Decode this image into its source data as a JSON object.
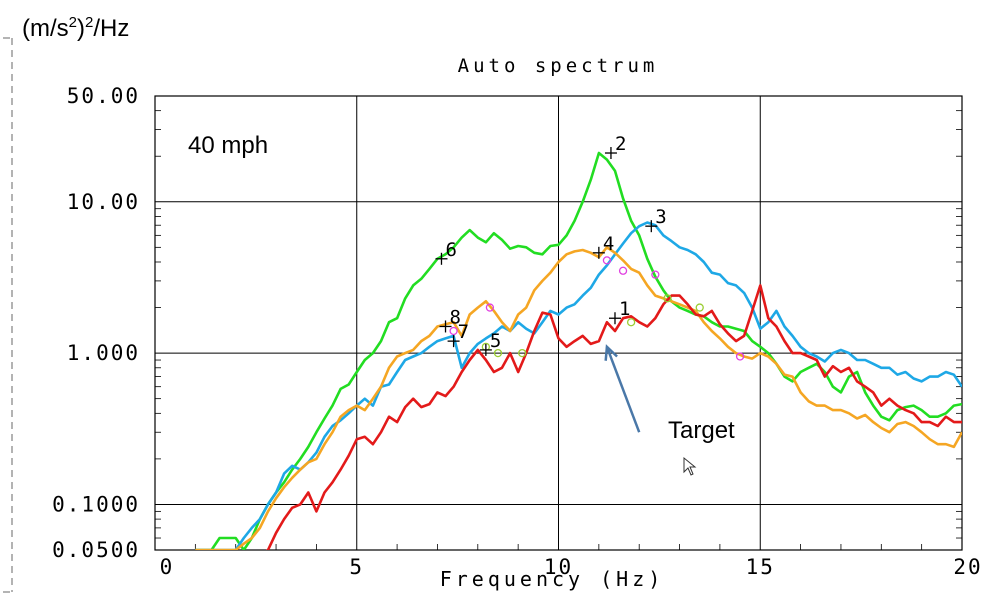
{
  "chart_data": {
    "type": "line",
    "title": "Auto spectrum",
    "xlabel": "Frequency (Hz)",
    "ylabel": "(m/s²)²/Hz",
    "ylabel_parts": [
      "(m/s",
      "2",
      ")",
      "2",
      "/Hz"
    ],
    "condition_label": "40 mph",
    "xlim": [
      0,
      20
    ],
    "ylim": [
      0.05,
      50
    ],
    "y_scale": "log",
    "x_ticks": [
      0,
      5,
      10,
      15,
      20
    ],
    "x_tick_labels": [
      "0",
      "5",
      "10",
      "15",
      "20"
    ],
    "y_ticks": [
      0.05,
      0.1,
      1,
      10,
      50
    ],
    "y_tick_labels": [
      "0.0500",
      "0.1000",
      "1.000",
      "10.00",
      "50.00"
    ],
    "grid": true,
    "series": [
      {
        "color": "#22dd22",
        "x": [
          1.0,
          1.2,
          1.4,
          1.6,
          1.8,
          2.0,
          2.2,
          2.4,
          2.6,
          2.8,
          3.0,
          3.2,
          3.4,
          3.6,
          3.8,
          4.0,
          4.2,
          4.4,
          4.6,
          4.8,
          5.0,
          5.2,
          5.4,
          5.6,
          5.8,
          6.0,
          6.2,
          6.4,
          6.6,
          6.8,
          7.0,
          7.2,
          7.4,
          7.6,
          7.8,
          8.0,
          8.2,
          8.4,
          8.6,
          8.8,
          9.0,
          9.2,
          9.4,
          9.6,
          9.8,
          10.0,
          10.2,
          10.4,
          10.6,
          10.8,
          11.0,
          11.2,
          11.4,
          11.6,
          11.8,
          12.0,
          12.2,
          12.4,
          12.6,
          12.8,
          13.0,
          13.2,
          13.4,
          13.6,
          13.8,
          14.0,
          14.2,
          14.4,
          14.6,
          14.8,
          15.0,
          15.2,
          15.4,
          15.6,
          15.8,
          16.0,
          16.2,
          16.4,
          16.6,
          16.8,
          17.0,
          17.2,
          17.4,
          17.6,
          17.8,
          18.0,
          18.2,
          18.4,
          18.6,
          18.8,
          19.0,
          19.2,
          19.4,
          19.6,
          19.8,
          20.0
        ],
        "y": [
          0.05,
          0.05,
          0.05,
          0.06,
          0.06,
          0.06,
          0.05,
          0.06,
          0.08,
          0.1,
          0.12,
          0.14,
          0.17,
          0.2,
          0.24,
          0.3,
          0.37,
          0.45,
          0.58,
          0.62,
          0.75,
          0.9,
          1.0,
          1.2,
          1.6,
          1.7,
          2.3,
          2.8,
          3.1,
          3.6,
          4.2,
          4.5,
          5.0,
          5.8,
          6.5,
          5.8,
          5.4,
          6.2,
          5.6,
          4.9,
          5.1,
          5.0,
          4.6,
          4.5,
          5.1,
          5.2,
          6.0,
          7.5,
          10.0,
          14.0,
          21.0,
          19.0,
          16.0,
          10.5,
          7.5,
          6.0,
          4.2,
          3.2,
          2.6,
          2.2,
          2.0,
          1.9,
          1.8,
          1.75,
          1.6,
          1.5,
          1.5,
          1.45,
          1.4,
          1.2,
          1.1,
          1.0,
          0.85,
          0.7,
          0.65,
          0.75,
          0.8,
          0.85,
          0.75,
          0.6,
          0.55,
          0.7,
          0.75,
          0.55,
          0.45,
          0.38,
          0.36,
          0.42,
          0.44,
          0.45,
          0.42,
          0.38,
          0.38,
          0.4,
          0.45,
          0.46
        ]
      },
      {
        "color": "#1ea8e6",
        "x": [
          1.0,
          1.2,
          1.4,
          1.6,
          1.8,
          2.0,
          2.2,
          2.4,
          2.6,
          2.8,
          3.0,
          3.2,
          3.4,
          3.6,
          3.8,
          4.0,
          4.2,
          4.4,
          4.6,
          4.8,
          5.0,
          5.2,
          5.4,
          5.6,
          5.8,
          6.0,
          6.2,
          6.4,
          6.6,
          6.8,
          7.0,
          7.2,
          7.4,
          7.6,
          7.8,
          8.0,
          8.2,
          8.4,
          8.6,
          8.8,
          9.0,
          9.2,
          9.4,
          9.6,
          9.8,
          10.0,
          10.2,
          10.4,
          10.6,
          10.8,
          11.0,
          11.2,
          11.4,
          11.6,
          11.8,
          12.0,
          12.2,
          12.4,
          12.6,
          12.8,
          13.0,
          13.2,
          13.4,
          13.6,
          13.8,
          14.0,
          14.2,
          14.4,
          14.6,
          14.8,
          15.0,
          15.2,
          15.4,
          15.6,
          15.8,
          16.0,
          16.2,
          16.4,
          16.6,
          16.8,
          17.0,
          17.2,
          17.4,
          17.6,
          17.8,
          18.0,
          18.2,
          18.4,
          18.6,
          18.8,
          19.0,
          19.2,
          19.4,
          19.6,
          19.8,
          20.0
        ],
        "y": [
          0.05,
          0.05,
          0.05,
          0.05,
          0.05,
          0.05,
          0.06,
          0.07,
          0.08,
          0.1,
          0.12,
          0.16,
          0.18,
          0.17,
          0.19,
          0.22,
          0.28,
          0.33,
          0.36,
          0.4,
          0.45,
          0.5,
          0.45,
          0.6,
          0.62,
          0.75,
          0.9,
          0.95,
          1.0,
          1.1,
          1.2,
          1.25,
          1.3,
          0.8,
          1.0,
          1.15,
          1.25,
          1.35,
          1.5,
          1.4,
          1.6,
          1.45,
          1.35,
          1.6,
          1.9,
          1.8,
          2.0,
          2.1,
          2.4,
          2.7,
          3.3,
          3.8,
          4.5,
          5.3,
          6.2,
          6.9,
          7.3,
          7.0,
          6.0,
          5.5,
          5.0,
          4.8,
          4.5,
          4.0,
          3.4,
          3.3,
          2.9,
          2.8,
          2.5,
          2.0,
          1.45,
          1.6,
          1.9,
          1.5,
          1.3,
          1.1,
          1.0,
          0.95,
          0.88,
          1.0,
          1.05,
          1.0,
          0.9,
          0.9,
          0.85,
          0.8,
          0.8,
          0.72,
          0.75,
          0.68,
          0.65,
          0.7,
          0.7,
          0.75,
          0.72,
          0.6
        ]
      },
      {
        "color": "#f5a623",
        "x": [
          1.0,
          1.2,
          1.4,
          1.6,
          1.8,
          2.0,
          2.2,
          2.4,
          2.6,
          2.8,
          3.0,
          3.2,
          3.4,
          3.6,
          3.8,
          4.0,
          4.2,
          4.4,
          4.6,
          4.8,
          5.0,
          5.2,
          5.4,
          5.6,
          5.8,
          6.0,
          6.2,
          6.4,
          6.6,
          6.8,
          7.0,
          7.2,
          7.4,
          7.6,
          7.8,
          8.0,
          8.2,
          8.4,
          8.6,
          8.8,
          9.0,
          9.2,
          9.4,
          9.6,
          9.8,
          10.0,
          10.2,
          10.4,
          10.6,
          10.8,
          11.0,
          11.2,
          11.4,
          11.6,
          11.8,
          12.0,
          12.2,
          12.4,
          12.6,
          12.8,
          13.0,
          13.2,
          13.4,
          13.6,
          13.8,
          14.0,
          14.2,
          14.4,
          14.6,
          14.8,
          15.0,
          15.2,
          15.4,
          15.6,
          15.8,
          16.0,
          16.2,
          16.4,
          16.6,
          16.8,
          17.0,
          17.2,
          17.4,
          17.6,
          17.8,
          18.0,
          18.2,
          18.4,
          18.6,
          18.8,
          19.0,
          19.2,
          19.4,
          19.6,
          19.8,
          20.0
        ],
        "y": [
          0.05,
          0.05,
          0.05,
          0.05,
          0.05,
          0.05,
          0.055,
          0.06,
          0.07,
          0.09,
          0.11,
          0.13,
          0.15,
          0.17,
          0.19,
          0.2,
          0.25,
          0.3,
          0.38,
          0.42,
          0.45,
          0.42,
          0.5,
          0.6,
          0.8,
          0.95,
          1.0,
          1.05,
          1.2,
          1.3,
          1.5,
          1.55,
          1.6,
          1.3,
          1.8,
          2.0,
          2.2,
          1.9,
          1.6,
          1.4,
          1.8,
          2.0,
          2.6,
          3.0,
          3.4,
          4.0,
          4.5,
          4.7,
          4.8,
          4.6,
          4.3,
          5.0,
          4.6,
          4.1,
          3.6,
          3.4,
          2.8,
          2.4,
          2.3,
          2.2,
          2.1,
          2.0,
          1.9,
          1.6,
          1.4,
          1.25,
          1.1,
          1.0,
          0.95,
          0.92,
          1.0,
          0.95,
          0.85,
          0.72,
          0.7,
          0.55,
          0.48,
          0.45,
          0.45,
          0.42,
          0.42,
          0.4,
          0.37,
          0.39,
          0.35,
          0.32,
          0.3,
          0.34,
          0.35,
          0.33,
          0.3,
          0.27,
          0.25,
          0.25,
          0.24,
          0.3
        ]
      },
      {
        "color": "#e31a1a",
        "x": [
          1.0,
          1.2,
          1.4,
          1.6,
          1.8,
          2.0,
          2.2,
          2.4,
          2.6,
          2.8,
          3.0,
          3.2,
          3.4,
          3.6,
          3.8,
          4.0,
          4.2,
          4.4,
          4.6,
          4.8,
          5.0,
          5.2,
          5.4,
          5.6,
          5.8,
          6.0,
          6.2,
          6.4,
          6.6,
          6.8,
          7.0,
          7.2,
          7.4,
          7.6,
          7.8,
          8.0,
          8.2,
          8.4,
          8.6,
          8.8,
          9.0,
          9.2,
          9.4,
          9.6,
          9.8,
          10.0,
          10.2,
          10.4,
          10.6,
          10.8,
          11.0,
          11.2,
          11.4,
          11.6,
          11.8,
          12.0,
          12.2,
          12.4,
          12.6,
          12.8,
          13.0,
          13.2,
          13.4,
          13.6,
          13.8,
          14.0,
          14.2,
          14.4,
          14.6,
          14.8,
          15.0,
          15.2,
          15.4,
          15.6,
          15.8,
          16.0,
          16.2,
          16.4,
          16.6,
          16.8,
          17.0,
          17.2,
          17.4,
          17.6,
          17.8,
          18.0,
          18.2,
          18.4,
          18.6,
          18.8,
          19.0,
          19.2,
          19.4,
          19.6,
          19.8,
          20.0
        ],
        "y": [
          0.04,
          0.04,
          0.04,
          0.04,
          0.04,
          0.04,
          0.04,
          0.04,
          0.045,
          0.05,
          0.065,
          0.08,
          0.095,
          0.1,
          0.12,
          0.09,
          0.12,
          0.14,
          0.17,
          0.21,
          0.27,
          0.28,
          0.25,
          0.3,
          0.38,
          0.35,
          0.44,
          0.5,
          0.44,
          0.46,
          0.55,
          0.52,
          0.6,
          0.75,
          0.9,
          1.05,
          0.9,
          0.75,
          0.8,
          1.0,
          0.75,
          1.0,
          1.4,
          1.85,
          1.8,
          1.25,
          1.1,
          1.2,
          1.3,
          1.15,
          1.2,
          1.6,
          1.4,
          1.7,
          1.75,
          1.6,
          1.5,
          1.7,
          2.1,
          2.4,
          2.4,
          2.1,
          1.8,
          1.75,
          1.9,
          1.55,
          1.35,
          1.2,
          1.3,
          1.9,
          2.8,
          1.7,
          1.5,
          1.2,
          1.0,
          1.0,
          0.95,
          0.9,
          0.7,
          0.82,
          0.75,
          0.8,
          0.65,
          0.6,
          0.55,
          0.45,
          0.5,
          0.45,
          0.42,
          0.4,
          0.35,
          0.35,
          0.33,
          0.38,
          0.35,
          0.35
        ]
      }
    ],
    "cursor_markers": [
      {
        "label": "1",
        "x": 11.4,
        "y": 1.7
      },
      {
        "label": "2",
        "x": 11.3,
        "y": 21.0
      },
      {
        "label": "3",
        "x": 12.3,
        "y": 6.9
      },
      {
        "label": "4",
        "x": 11.0,
        "y": 4.6
      },
      {
        "label": "5",
        "x": 8.2,
        "y": 1.05
      },
      {
        "label": "6",
        "x": 7.1,
        "y": 4.2
      },
      {
        "label": "7",
        "x": 7.4,
        "y": 1.2
      },
      {
        "label": "8",
        "x": 7.2,
        "y": 1.5
      }
    ],
    "circle_markers": [
      {
        "x": 7.4,
        "y": 1.4,
        "color": "#e040e0"
      },
      {
        "x": 8.3,
        "y": 2.0,
        "color": "#e040e0"
      },
      {
        "x": 11.2,
        "y": 4.1,
        "color": "#e040e0"
      },
      {
        "x": 11.6,
        "y": 3.5,
        "color": "#e040e0"
      },
      {
        "x": 12.4,
        "y": 3.3,
        "color": "#e040e0"
      },
      {
        "x": 14.5,
        "y": 0.95,
        "color": "#e040e0"
      },
      {
        "x": 8.2,
        "y": 1.1,
        "color": "#9acd32"
      },
      {
        "x": 8.5,
        "y": 1.0,
        "color": "#9acd32"
      },
      {
        "x": 9.1,
        "y": 1.0,
        "color": "#9acd32"
      },
      {
        "x": 11.8,
        "y": 1.6,
        "color": "#9acd32"
      },
      {
        "x": 13.5,
        "y": 2.0,
        "color": "#9acd32"
      },
      {
        "x": 12.7,
        "y": 2.3,
        "color": "#9acd32"
      }
    ],
    "annotation": {
      "text": "Target",
      "arrow_from": [
        12.0,
        0.3
      ],
      "arrow_to": [
        11.2,
        1.1
      ],
      "color": "#4a78a8"
    }
  }
}
